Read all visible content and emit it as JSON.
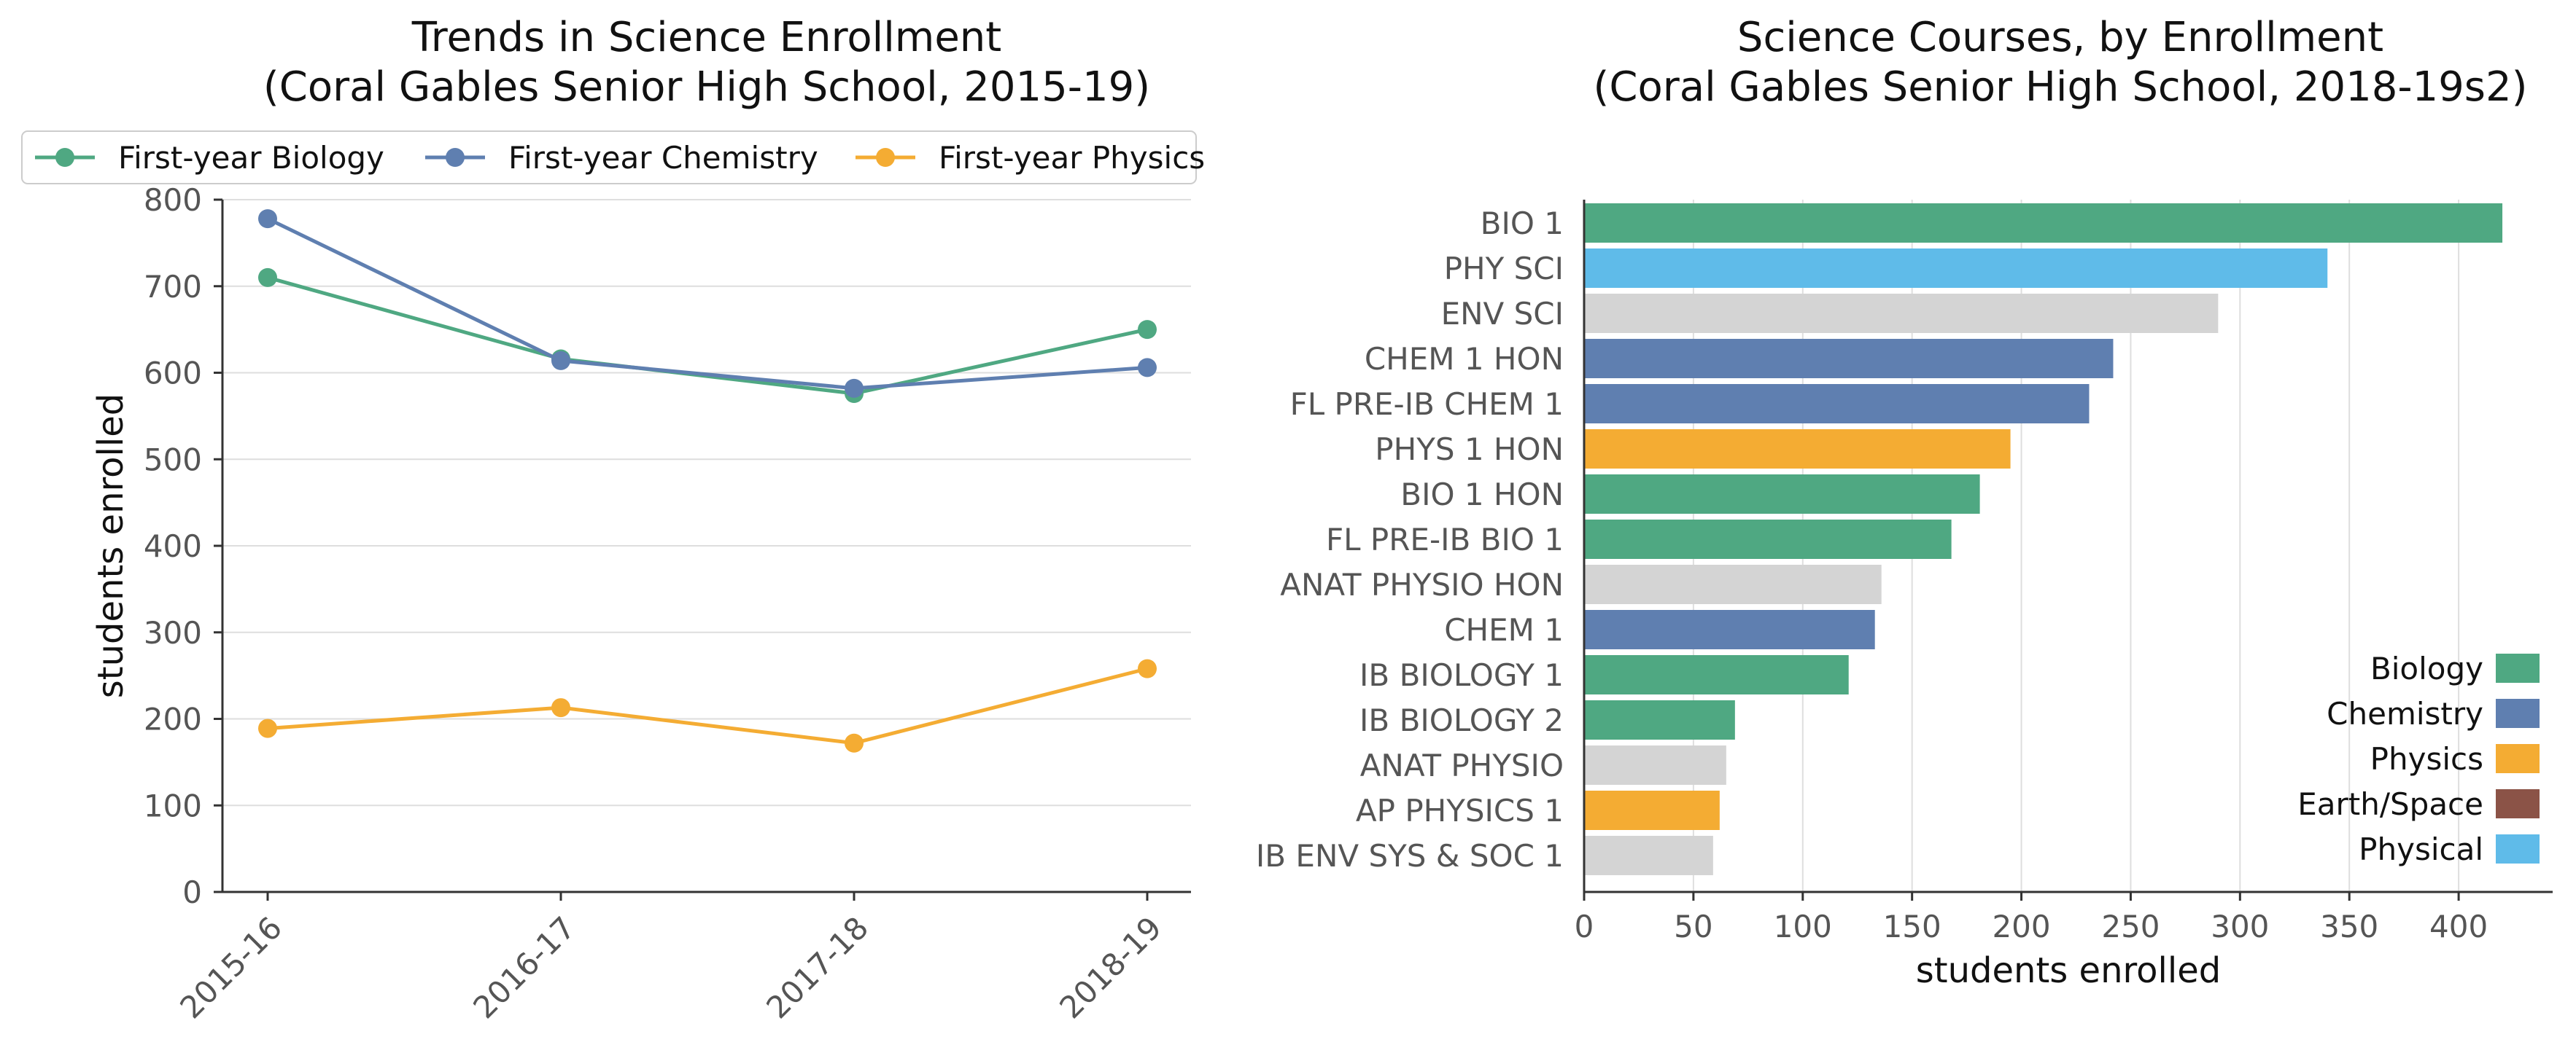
{
  "chart_data": [
    {
      "type": "line",
      "title": "Trends in Science Enrollment\n(Coral Gables Senior High School, 2015-19)",
      "xlabel": "",
      "ylabel": "students enrolled",
      "categories": [
        "2015-16",
        "2016-17",
        "2017-18",
        "2018-19"
      ],
      "ylim": [
        0,
        800
      ],
      "yticks": [
        0,
        100,
        200,
        300,
        400,
        500,
        600,
        700,
        800
      ],
      "grid": "horizontal",
      "legend_position": "top",
      "series": [
        {
          "name": "First-year Biology",
          "color": "#4fa882",
          "values": [
            710,
            616,
            576,
            650
          ]
        },
        {
          "name": "First-year Chemistry",
          "color": "#5f7fb0",
          "values": [
            778,
            614,
            582,
            606
          ]
        },
        {
          "name": "First-year Physics",
          "color": "#f4ac33",
          "values": [
            189,
            213,
            172,
            258
          ]
        }
      ]
    },
    {
      "type": "bar",
      "orientation": "horizontal",
      "title": "Science Courses, by Enrollment\n(Coral Gables Senior High School, 2018-19s2)",
      "xlabel": "students enrolled",
      "ylabel": "",
      "xlim": [
        0,
        443
      ],
      "xticks": [
        0,
        50,
        100,
        150,
        200,
        250,
        300,
        350,
        400
      ],
      "grid": "vertical",
      "legend_position": "lower right",
      "categories": [
        "BIO 1",
        "PHY SCI",
        "ENV SCI",
        "CHEM 1 HON",
        "FL PRE-IB CHEM 1",
        "PHYS 1 HON",
        "BIO 1 HON",
        "FL PRE-IB BIO 1",
        "ANAT PHYSIO HON",
        "CHEM 1",
        "IB BIOLOGY 1",
        "IB BIOLOGY 2",
        "ANAT PHYSIO",
        "AP PHYSICS 1",
        "IB ENV SYS & SOC 1"
      ],
      "values": [
        420,
        340,
        290,
        242,
        231,
        195,
        181,
        168,
        136,
        133,
        121,
        69,
        65,
        62,
        59
      ],
      "bar_colors": [
        "#4fa882",
        "#5fbbe9",
        "#d4d4d4",
        "#5f7fb0",
        "#5f7fb0",
        "#f4ac33",
        "#4fa882",
        "#4fa882",
        "#d4d4d4",
        "#5f7fb0",
        "#4fa882",
        "#4fa882",
        "#d4d4d4",
        "#f4ac33",
        "#d4d4d4"
      ],
      "legend": [
        {
          "name": "Biology",
          "color": "#4fa882"
        },
        {
          "name": "Chemistry",
          "color": "#5f7fb0"
        },
        {
          "name": "Physics",
          "color": "#f4ac33"
        },
        {
          "name": "Earth/Space",
          "color": "#8b5347"
        },
        {
          "name": "Physical",
          "color": "#5fbbe9"
        }
      ]
    }
  ]
}
